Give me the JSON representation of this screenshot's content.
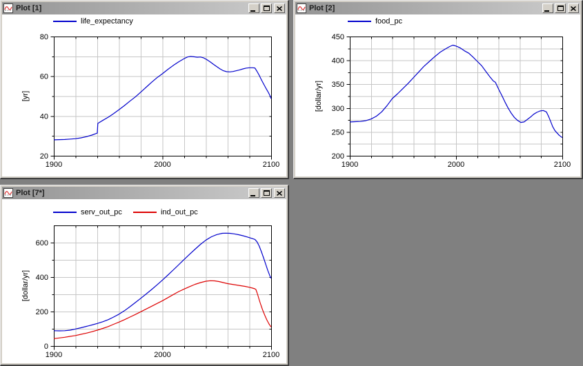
{
  "desktop": {
    "background": "#808080"
  },
  "colors": {
    "chrome": "#d4d0c8",
    "titlebar_gradient_left": "#949494",
    "titlebar_gradient_right": "#cdcdcd",
    "grid": "#c6c6c6",
    "frame": "#000000",
    "series_blue": "#0000cc",
    "series_red": "#dd0000"
  },
  "windows": [
    {
      "title": "Plot [1]",
      "icon": "plot-curve-icon",
      "controls": [
        "minimize",
        "maximize",
        "close"
      ],
      "legend": [
        {
          "label": "life_expectancy",
          "color": "#0000cc"
        }
      ],
      "chart_data": {
        "type": "line",
        "xlim": [
          1900,
          2100
        ],
        "ylim": [
          20,
          80
        ],
        "ylabel": "[yr]",
        "xlabel": "",
        "x_ticks": [
          1900,
          2000,
          2100
        ],
        "x_minor_step": 20,
        "y_ticks": [
          20,
          40,
          60,
          80
        ],
        "y_grid_step": 10,
        "grid": true,
        "legend_position": "top-left",
        "series": [
          {
            "name": "life_expectancy",
            "color": "#0000cc",
            "points": [
              [
                1900,
                28.0
              ],
              [
                1905,
                28.1
              ],
              [
                1910,
                28.2
              ],
              [
                1915,
                28.4
              ],
              [
                1920,
                28.6
              ],
              [
                1925,
                29.0
              ],
              [
                1930,
                29.6
              ],
              [
                1935,
                30.4
              ],
              [
                1939,
                31.2
              ],
              [
                1940,
                31.4
              ],
              [
                1940.5,
                36.3
              ],
              [
                1945,
                37.8
              ],
              [
                1950,
                39.4
              ],
              [
                1955,
                41.2
              ],
              [
                1960,
                43.2
              ],
              [
                1965,
                45.3
              ],
              [
                1970,
                47.5
              ],
              [
                1975,
                49.6
              ],
              [
                1980,
                52.0
              ],
              [
                1985,
                54.5
              ],
              [
                1990,
                57.0
              ],
              [
                1995,
                59.3
              ],
              [
                2000,
                61.3
              ],
              [
                2005,
                63.5
              ],
              [
                2010,
                65.5
              ],
              [
                2015,
                67.3
              ],
              [
                2020,
                68.9
              ],
              [
                2023,
                69.7
              ],
              [
                2026,
                70.0
              ],
              [
                2029,
                69.8
              ],
              [
                2032,
                69.6
              ],
              [
                2035,
                69.7
              ],
              [
                2038,
                69.2
              ],
              [
                2041,
                68.3
              ],
              [
                2044,
                67.2
              ],
              [
                2047,
                66.0
              ],
              [
                2050,
                64.8
              ],
              [
                2053,
                63.7
              ],
              [
                2056,
                62.8
              ],
              [
                2059,
                62.3
              ],
              [
                2062,
                62.2
              ],
              [
                2065,
                62.4
              ],
              [
                2068,
                62.8
              ],
              [
                2071,
                63.2
              ],
              [
                2074,
                63.7
              ],
              [
                2077,
                64.1
              ],
              [
                2080,
                64.3
              ],
              [
                2083,
                64.3
              ],
              [
                2085,
                64.2
              ],
              [
                2087,
                62.5
              ],
              [
                2089,
                60.5
              ],
              [
                2091,
                58.3
              ],
              [
                2093,
                56.2
              ],
              [
                2095,
                54.2
              ],
              [
                2097,
                52.3
              ],
              [
                2099,
                50.2
              ],
              [
                2100,
                48.7
              ]
            ]
          }
        ]
      }
    },
    {
      "title": "Plot [2]",
      "icon": "plot-curve-icon",
      "controls": [
        "minimize",
        "maximize",
        "close"
      ],
      "legend": [
        {
          "label": "food_pc",
          "color": "#0000cc"
        }
      ],
      "chart_data": {
        "type": "line",
        "xlim": [
          1900,
          2100
        ],
        "ylim": [
          200,
          450
        ],
        "ylabel": "[dollar/yr]",
        "xlabel": "",
        "x_ticks": [
          1900,
          2000,
          2100
        ],
        "x_minor_step": 20,
        "y_ticks": [
          200,
          250,
          300,
          350,
          400,
          450
        ],
        "y_grid_step": 25,
        "grid": true,
        "legend_position": "top-left",
        "series": [
          {
            "name": "food_pc",
            "color": "#0000cc",
            "points": [
              [
                1900,
                271
              ],
              [
                1905,
                271.5
              ],
              [
                1910,
                272
              ],
              [
                1915,
                273.5
              ],
              [
                1920,
                277
              ],
              [
                1925,
                283
              ],
              [
                1930,
                292
              ],
              [
                1935,
                305
              ],
              [
                1940,
                320
              ],
              [
                1945,
                330
              ],
              [
                1950,
                341
              ],
              [
                1955,
                352
              ],
              [
                1960,
                364
              ],
              [
                1965,
                376
              ],
              [
                1970,
                388
              ],
              [
                1975,
                398
              ],
              [
                1980,
                408
              ],
              [
                1985,
                417
              ],
              [
                1990,
                424
              ],
              [
                1994,
                429
              ],
              [
                1997,
                432
              ],
              [
                2000,
                430
              ],
              [
                2004,
                426
              ],
              [
                2008,
                420
              ],
              [
                2012,
                415
              ],
              [
                2016,
                407
              ],
              [
                2020,
                398
              ],
              [
                2024,
                389
              ],
              [
                2028,
                377
              ],
              [
                2032,
                365
              ],
              [
                2035,
                357
              ],
              [
                2037,
                354
              ],
              [
                2040,
                340
              ],
              [
                2043,
                327
              ],
              [
                2046,
                313
              ],
              [
                2049,
                300
              ],
              [
                2052,
                289
              ],
              [
                2055,
                280
              ],
              [
                2058,
                274
              ],
              [
                2061,
                270
              ],
              [
                2064,
                271
              ],
              [
                2067,
                276
              ],
              [
                2070,
                281
              ],
              [
                2073,
                287
              ],
              [
                2076,
                291
              ],
              [
                2079,
                294
              ],
              [
                2082,
                295
              ],
              [
                2085,
                292
              ],
              [
                2087,
                283
              ],
              [
                2089,
                272
              ],
              [
                2091,
                261
              ],
              [
                2093,
                253
              ],
              [
                2095,
                248
              ],
              [
                2097,
                243
              ],
              [
                2100,
                238
              ]
            ]
          }
        ]
      }
    },
    {
      "title": "Plot [7*]",
      "icon": "plot-curve-icon",
      "controls": [
        "minimize",
        "maximize",
        "close"
      ],
      "legend": [
        {
          "label": "serv_out_pc",
          "color": "#0000cc"
        },
        {
          "label": "ind_out_pc",
          "color": "#dd0000"
        }
      ],
      "chart_data": {
        "type": "line",
        "xlim": [
          1900,
          2100
        ],
        "ylim": [
          0,
          700
        ],
        "ylabel": "[dollar/yr]",
        "xlabel": "",
        "x_ticks": [
          1900,
          2000,
          2100
        ],
        "x_minor_step": 20,
        "y_ticks": [
          0,
          200,
          400,
          600
        ],
        "y_grid_step": 100,
        "grid": true,
        "legend_position": "top-left",
        "series": [
          {
            "name": "serv_out_pc",
            "color": "#0000cc",
            "points": [
              [
                1900,
                89
              ],
              [
                1905,
                88
              ],
              [
                1910,
                89
              ],
              [
                1915,
                92
              ],
              [
                1920,
                99
              ],
              [
                1925,
                106
              ],
              [
                1930,
                114
              ],
              [
                1935,
                122
              ],
              [
                1940,
                131
              ],
              [
                1945,
                141
              ],
              [
                1950,
                153
              ],
              [
                1955,
                168
              ],
              [
                1960,
                185
              ],
              [
                1965,
                205
              ],
              [
                1970,
                228
              ],
              [
                1975,
                252
              ],
              [
                1980,
                277
              ],
              [
                1985,
                302
              ],
              [
                1990,
                328
              ],
              [
                1995,
                355
              ],
              [
                2000,
                383
              ],
              [
                2005,
                412
              ],
              [
                2010,
                442
              ],
              [
                2015,
                472
              ],
              [
                2020,
                503
              ],
              [
                2025,
                533
              ],
              [
                2030,
                562
              ],
              [
                2035,
                590
              ],
              [
                2040,
                615
              ],
              [
                2045,
                634
              ],
              [
                2050,
                647
              ],
              [
                2055,
                654
              ],
              [
                2058,
                655
              ],
              [
                2062,
                654
              ],
              [
                2066,
                651
              ],
              [
                2070,
                646
              ],
              [
                2074,
                640
              ],
              [
                2078,
                633
              ],
              [
                2082,
                625
              ],
              [
                2085,
                619
              ],
              [
                2087,
                605
              ],
              [
                2089,
                580
              ],
              [
                2091,
                548
              ],
              [
                2093,
                512
              ],
              [
                2095,
                475
              ],
              [
                2097,
                437
              ],
              [
                2099,
                405
              ],
              [
                2100,
                393
              ]
            ]
          },
          {
            "name": "ind_out_pc",
            "color": "#dd0000",
            "points": [
              [
                1900,
                43
              ],
              [
                1905,
                47
              ],
              [
                1910,
                51
              ],
              [
                1915,
                56
              ],
              [
                1920,
                61
              ],
              [
                1925,
                68
              ],
              [
                1930,
                75
              ],
              [
                1935,
                83
              ],
              [
                1940,
                92
              ],
              [
                1945,
                102
              ],
              [
                1950,
                113
              ],
              [
                1955,
                126
              ],
              [
                1960,
                139
              ],
              [
                1965,
                153
              ],
              [
                1970,
                168
              ],
              [
                1975,
                183
              ],
              [
                1980,
                199
              ],
              [
                1985,
                215
              ],
              [
                1990,
                231
              ],
              [
                1995,
                247
              ],
              [
                2000,
                263
              ],
              [
                2005,
                281
              ],
              [
                2010,
                299
              ],
              [
                2015,
                316
              ],
              [
                2020,
                331
              ],
              [
                2025,
                345
              ],
              [
                2030,
                358
              ],
              [
                2035,
                368
              ],
              [
                2040,
                376
              ],
              [
                2044,
                379
              ],
              [
                2048,
                378
              ],
              [
                2052,
                374
              ],
              [
                2056,
                368
              ],
              [
                2060,
                362
              ],
              [
                2064,
                358
              ],
              [
                2068,
                354
              ],
              [
                2072,
                350
              ],
              [
                2076,
                346
              ],
              [
                2080,
                341
              ],
              [
                2083,
                336
              ],
              [
                2085,
                332
              ],
              [
                2086,
                328
              ],
              [
                2087,
                310
              ],
              [
                2088,
                290
              ],
              [
                2089,
                268
              ],
              [
                2090,
                248
              ],
              [
                2092,
                212
              ],
              [
                2094,
                180
              ],
              [
                2096,
                152
              ],
              [
                2098,
                128
              ],
              [
                2100,
                110
              ]
            ]
          }
        ]
      }
    }
  ]
}
